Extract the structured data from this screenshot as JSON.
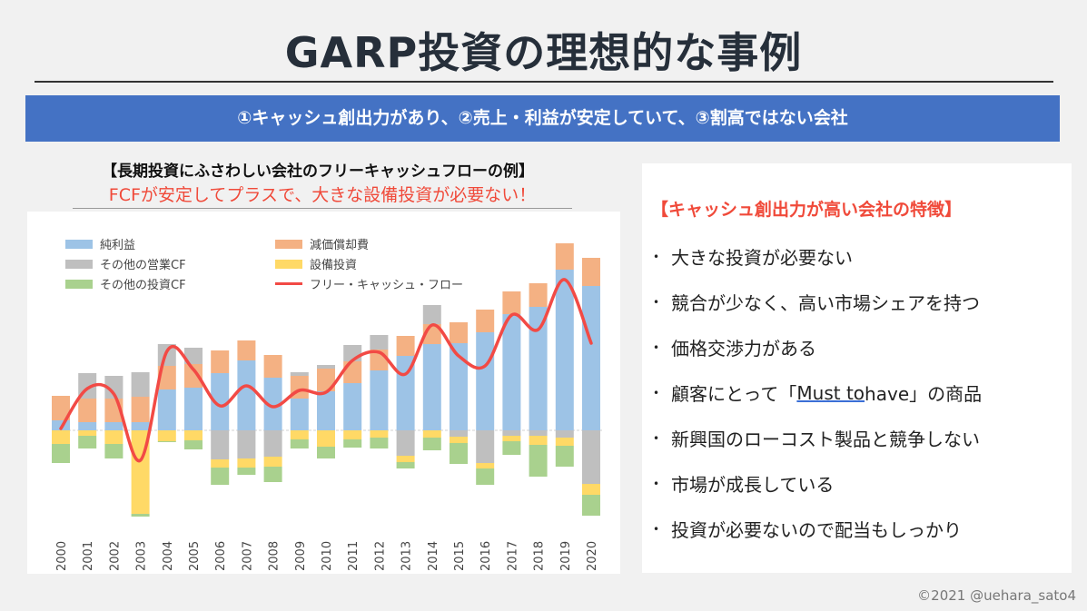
{
  "title": "GARP投資の理想的な事例",
  "banner": "①キャッシュ創出力があり、②売上・利益が安定していて、③割高ではない会社",
  "chart_heading": "【長期投資にふさわしい会社のフリーキャッシュフローの例】",
  "chart_subtitle": "FCFが安定してプラスで、大きな設備投資が必要ない！",
  "panel": {
    "title": "【キャッシュ創出力が高い会社の特徴】",
    "bullets": [
      "大きな投資が必要ない",
      "競合が少なく、高い市場シェアを持つ",
      "価格交渉力がある",
      {
        "pre": "顧客にとって「",
        "ul": "Must to",
        "post": " have」の商品"
      },
      "新興国のローコスト製品と競争しない",
      "市場が成長している",
      "投資が必要ないので配当もしっかり"
    ]
  },
  "credit": "©2021 @uehara_sato4",
  "chart_data": {
    "type": "bar",
    "stacked": true,
    "title": "",
    "xlabel": "",
    "ylabel": "",
    "grid": false,
    "legend_position": "top-left",
    "ylim": [
      -100,
      210
    ],
    "categories": [
      "2000",
      "2001",
      "2002",
      "2003",
      "2004",
      "2005",
      "2006",
      "2007",
      "2008",
      "2009",
      "2010",
      "2011",
      "2012",
      "2013",
      "2014",
      "2015",
      "2016",
      "2017",
      "2018",
      "2019",
      "2020"
    ],
    "series": [
      {
        "name": "純利益",
        "color": "#9dc3e6",
        "values": [
          11,
          9,
          9,
          9,
          45,
          47,
          63,
          77,
          58,
          35,
          43,
          52,
          66,
          82,
          95,
          96,
          108,
          128,
          136,
          177,
          159
        ]
      },
      {
        "name": "減価償却費",
        "color": "#f4b183",
        "values": [
          27,
          26,
          26,
          28,
          26,
          26,
          25,
          22,
          25,
          25,
          25,
          24,
          23,
          22,
          22,
          23,
          25,
          25,
          26,
          29,
          31
        ]
      },
      {
        "name": "その他の営業CF",
        "color": "#bfbfbf",
        "values": [
          0,
          28,
          25,
          27,
          24,
          18,
          -32,
          -31,
          -29,
          4,
          4,
          18,
          16,
          -28,
          21,
          -7,
          -36,
          -6,
          -6,
          -8,
          -59
        ]
      },
      {
        "name": "設備投資",
        "color": "#ffd966",
        "values": [
          -15,
          -6,
          -15,
          -92,
          -12,
          -11,
          -9,
          -10,
          -11,
          -10,
          -18,
          -10,
          -8,
          -7,
          -8,
          -7,
          -6,
          -6,
          -10,
          -9,
          -12
        ]
      },
      {
        "name": "その他の投資CF",
        "color": "#a9d18e",
        "values": [
          -21,
          -14,
          -16,
          -3,
          -1,
          -10,
          -19,
          -8,
          -17,
          -10,
          -13,
          -9,
          -12,
          -7,
          -14,
          -23,
          -18,
          -15,
          -35,
          -23,
          -23
        ]
      },
      {
        "name": "フリー・キャッシュ・フロー",
        "color": "#f24a45",
        "type": "line",
        "values": [
          2,
          46,
          40,
          -33,
          87,
          67,
          27,
          49,
          26,
          44,
          42,
          77,
          86,
          62,
          116,
          82,
          71,
          127,
          111,
          166,
          96
        ]
      }
    ]
  }
}
